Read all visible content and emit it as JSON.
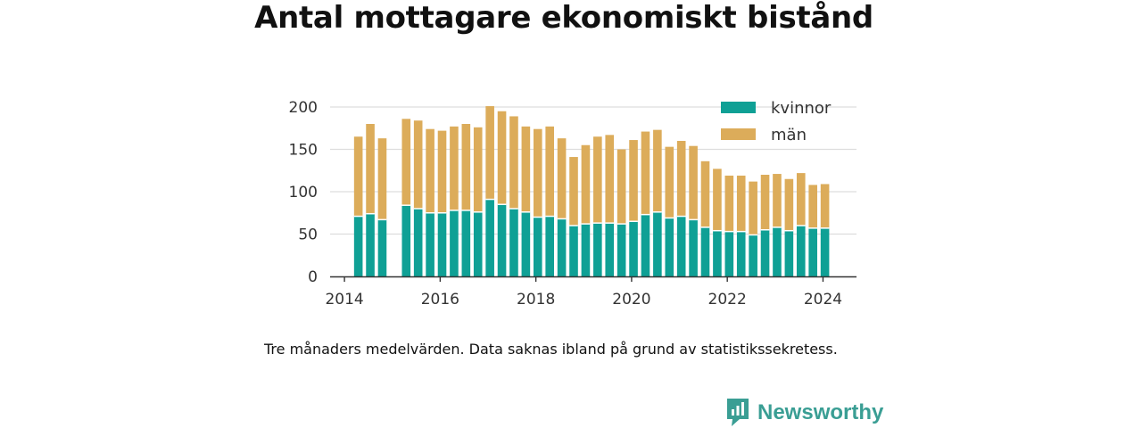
{
  "title": "Antal mottagare ekonomiskt bistånd",
  "caption": "Tre månaders medelvärden. Data saknas ibland på grund av statistikssekretess.",
  "brand": {
    "name": "Newsworthy",
    "icon": "newsworthy-logo-icon",
    "color": "#3a9e94"
  },
  "chart_data": {
    "type": "bar",
    "stacked": true,
    "title": "Antal mottagare ekonomiskt bistånd",
    "xlabel": "",
    "ylabel": "",
    "xlim": [
      2013.7,
      2024.7
    ],
    "ylim": [
      0,
      200
    ],
    "x_ticks": [
      2014,
      2016,
      2018,
      2020,
      2022,
      2024
    ],
    "y_ticks": [
      0,
      50,
      100,
      150,
      200
    ],
    "grid": "horizontal",
    "legend_position": "top-right",
    "x": [
      2014.29,
      2014.54,
      2014.79,
      2015.29,
      2015.54,
      2015.79,
      2016.04,
      2016.29,
      2016.54,
      2016.79,
      2017.04,
      2017.29,
      2017.54,
      2017.79,
      2018.04,
      2018.29,
      2018.54,
      2018.79,
      2019.04,
      2019.29,
      2019.54,
      2019.79,
      2020.04,
      2020.29,
      2020.54,
      2020.79,
      2021.04,
      2021.29,
      2021.54,
      2021.79,
      2022.04,
      2022.29,
      2022.54,
      2022.79,
      2023.04,
      2023.29,
      2023.54,
      2023.79,
      2024.04
    ],
    "series": [
      {
        "name": "kvinnor",
        "color": "#0fa095",
        "values": [
          71,
          74,
          67,
          84,
          80,
          75,
          75,
          78,
          78,
          76,
          91,
          85,
          80,
          76,
          70,
          71,
          68,
          60,
          62,
          63,
          63,
          62,
          65,
          73,
          76,
          69,
          71,
          67,
          58,
          54,
          53,
          53,
          49,
          55,
          58,
          54,
          60,
          57,
          57
        ]
      },
      {
        "name": "män",
        "color": "#dcac5a",
        "values": [
          94,
          106,
          96,
          102,
          104,
          99,
          97,
          99,
          102,
          100,
          110,
          110,
          109,
          101,
          104,
          106,
          95,
          81,
          93,
          102,
          104,
          88,
          96,
          98,
          97,
          84,
          89,
          87,
          78,
          73,
          66,
          66,
          63,
          65,
          63,
          61,
          62,
          51,
          52
        ]
      }
    ]
  }
}
